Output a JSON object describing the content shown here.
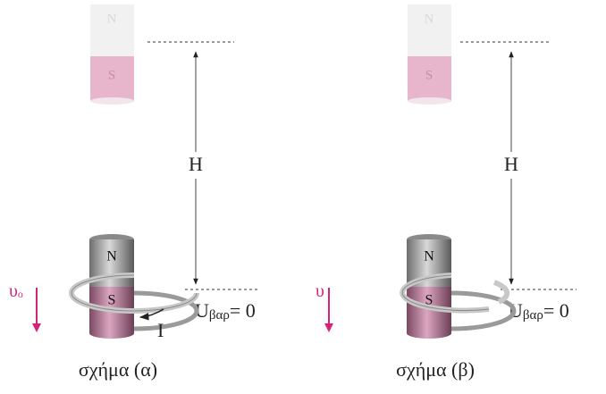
{
  "panels": [
    {
      "top_magnet": {
        "north": "N",
        "south": "S"
      },
      "bottom_magnet": {
        "north": "N",
        "south": "S"
      },
      "height_label": "H",
      "potential": {
        "symbol": "U",
        "subscript": "βαρ",
        "value": "= 0"
      },
      "velocity": {
        "symbol": "υ",
        "subscript": "o"
      },
      "current_label": "I",
      "caption": "σχήμα (α)"
    },
    {
      "top_magnet": {
        "north": "N",
        "south": "S"
      },
      "bottom_magnet": {
        "north": "N",
        "south": "S"
      },
      "height_label": "H",
      "potential": {
        "symbol": "U",
        "subscript": "βαρ",
        "value": "= 0"
      },
      "velocity": {
        "symbol": "υ"
      },
      "caption": "σχήμα (β)"
    }
  ]
}
